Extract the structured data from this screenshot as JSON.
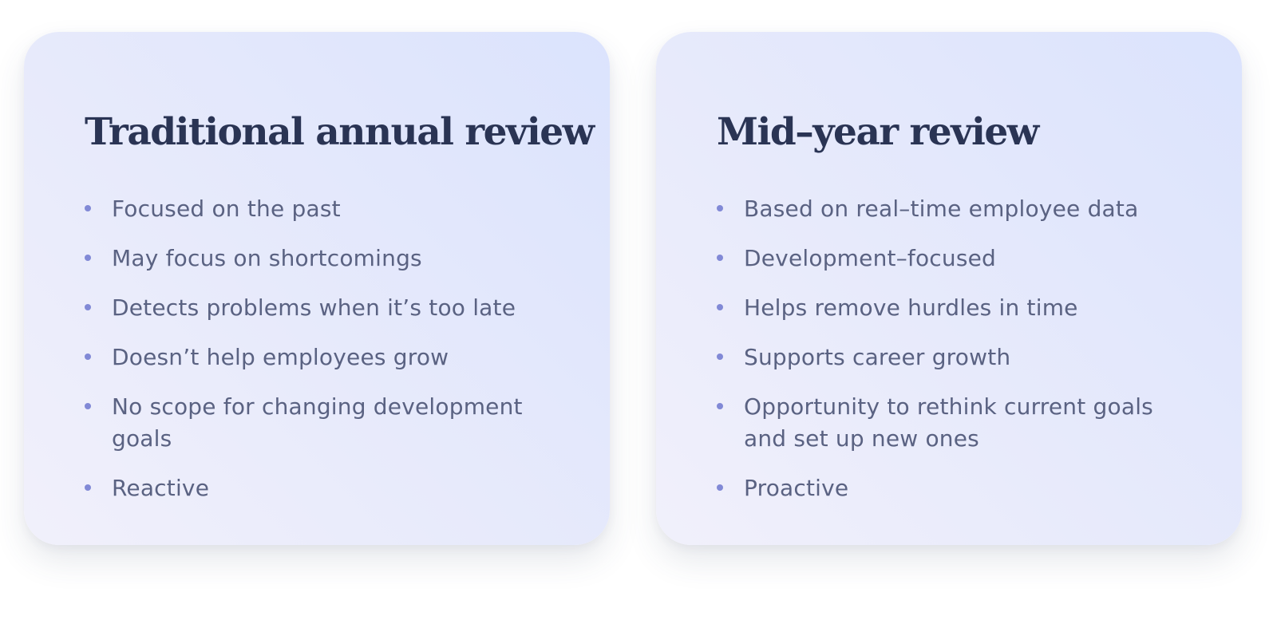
{
  "cards": [
    {
      "title": "Traditional annual review",
      "points": [
        "Focused on the past",
        "May focus on shortcomings",
        "Detects problems when it’s too late",
        "Doesn’t help employees grow",
        "No scope for changing development goals",
        "Reactive"
      ]
    },
    {
      "title": "Mid–year review",
      "points": [
        "Based on real–time employee data",
        "Development–focused",
        "Helps remove hurdles in time",
        "Supports career growth",
        "Opportunity to rethink current goals and set up new ones",
        "Proactive"
      ]
    }
  ],
  "colors": {
    "title": "#2a3454",
    "text": "#5a6282",
    "bullet": "#8189d6",
    "card_gradient_start": "#dbe3fd",
    "card_gradient_end": "#f1f0fb"
  }
}
